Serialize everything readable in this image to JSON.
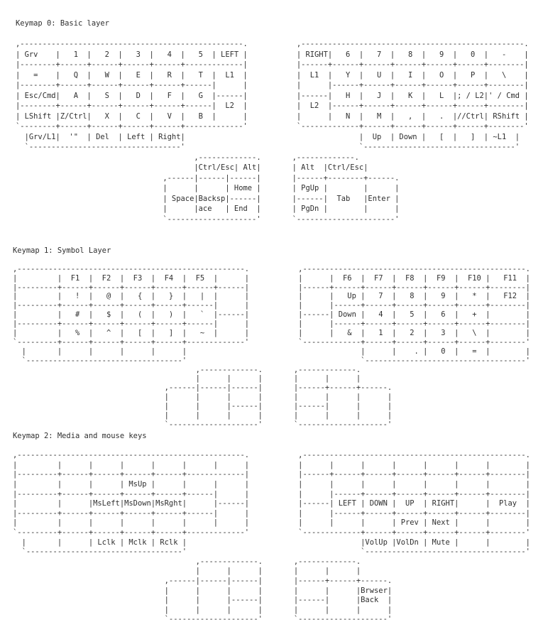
{
  "layers": [
    {
      "title": "Keymap 0: Basic layer",
      "lines": [
        "",
        ",--------------------------------------------------.           ,--------------------------------------------------.",
        "| Grv    |   1  |   2  |   3  |   4  |   5  | LEFT |           | RIGHT|   6  |   7  |   8  |   9  |   0  |   -    |",
        "|--------+------+------+------+------+-------------|           |------+------+------+------+------+------+--------|",
        "|   =    |   Q  |   W  |   E  |   R  |   T  |  L1  |           |  L1  |   Y  |   U  |   I  |   O  |   P  |   \\    |",
        "|--------+------+------+------+------+------|      |           |      |------+------+------+------+------+--------|",
        "| Esc/Cmd|   A  |   S  |   D  |   F  |   G  |------|           |------|   H  |   J  |   K  |   L  |; / L2|' / Cmd |",
        "|--------+------+------+------+------+------|  L2  |           |  L2  |------+------+------+------+------+--------|",
        "| LShift |Z/Ctrl|   X  |   C  |   V  |   B  |      |           |      |   N  |   M  |   ,  |   .  |//Ctrl| RShift |",
        "`--------+------+------+------+------+-------------'           `-------------+------+------+------+------+--------'",
        "  |Grv/L1|  '\"  | Del  | Left | Right|                                       |  Up  | Down |   [  |   ]  | ~L1  |",
        "  `----------------------------------'                                       `----------------------------------'",
        "                                        ,-------------.       ,-------------.",
        "                                        |Ctrl/Esc| Alt|       | Alt  |Ctrl/Esc|",
        "                                 ,------|------|------|       |------+--------+------.",
        "                                 |      |      | Home |       | PgUp |        |      |",
        "                                 | Space|Backsp|------|       |------|  Tab   |Enter |",
        "                                 |      |ace   | End  |       | PgDn |        |      |",
        "                                 `--------------------'       `----------------------'"
      ]
    },
    {
      "title": "Keymap 1: Symbol Layer",
      "lines": [
        "",
        ",---------------------------------------------------.           ,--------------------------------------------------.",
        "|         |  F1  |  F2  |  F3  |  F4  |  F5  |      |           |      |  F6  |  F7  |  F8  |  F9  |  F10 |   F11  |",
        "|---------+------+------+------+------+------+------|           |------+------+------+------+------+------+--------|",
        "|         |   !  |   @  |   {  |   }  |   |  |      |           |      |   Up |   7  |   8  |   9  |   *  |   F12  |",
        "|---------+------+------+------+------+------|      |           |      |------+------+------+------+------+--------|",
        "|         |   #  |   $  |   (  |   )  |   `  |------|           |------| Down |   4  |   5  |   6  |   +  |        |",
        "|---------+------+------+------+------+------|      |           |      |------+------+------+------+------+--------|",
        "|         |   %  |   ^  |   [  |   ]  |   ~  |      |           |      |   &  |   1  |   2  |   3  |   \\  |        |",
        "`---------+------+------+------+------+-------------'           `-------------+------+------+------+------+--------'",
        "  |       |      |      |      |      |                                       |      |    . |   0  |   =  |        |",
        "  `-----------------------------------'                                       `------------------------------------'",
        "                                         ,-------------.       ,-------------.",
        "                                         |      |      |       |      |      |",
        "                                  ,------|------|------|       |------+------+------.",
        "                                  |      |      |      |       |      |      |      |",
        "                                  |      |      |------|       |------|      |      |",
        "                                  |      |      |      |       |      |      |      |",
        "                                  `--------------------'       `--------------------'"
      ]
    },
    {
      "title": "Keymap 2: Media and mouse keys",
      "lines": [
        "",
        ",---------------------------------------------------.           ,--------------------------------------------------.",
        "|         |      |      |      |      |      |      |           |      |      |      |      |      |      |        |",
        "|---------+------+------+------+------+-------------|           |------+------+------+------+------+------+--------|",
        "|         |      |      | MsUp |      |      |      |           |      |      |      |      |      |      |        |",
        "|---------+------+------+------+------+------|      |           |      |------+------+------+------+------+--------|",
        "|         |      |MsLeft|MsDown|MsRght|      |------|           |------| LEFT | DOWN |  UP  | RIGHT|      |  Play  |",
        "|---------+------+------+------+------+------|      |           |      |------+------+------+------+------+--------|",
        "|         |      |      |      |      |      |      |           |      |      |      | Prev | Next |      |        |",
        "`---------+------+------+------+------+-------------'           `-------------+------+------+------+------+--------'",
        "  |       |      | Lclk | Mclk | Rclk |                                       |VolUp |VolDn | Mute |      |        |",
        "  `-----------------------------------'                                       `------------------------------------'",
        "                                         ,-------------.       ,-------------.",
        "                                         |      |      |       |      |      |",
        "                                  ,------|------|------|       |------+------+------.",
        "                                  |      |      |      |       |      |      |Brwser|",
        "                                  |      |      |------|       |------|      |Back  |",
        "                                  |      |      |      |       |      |      |      |",
        "                                  `--------------------'       `--------------------'"
      ]
    }
  ]
}
